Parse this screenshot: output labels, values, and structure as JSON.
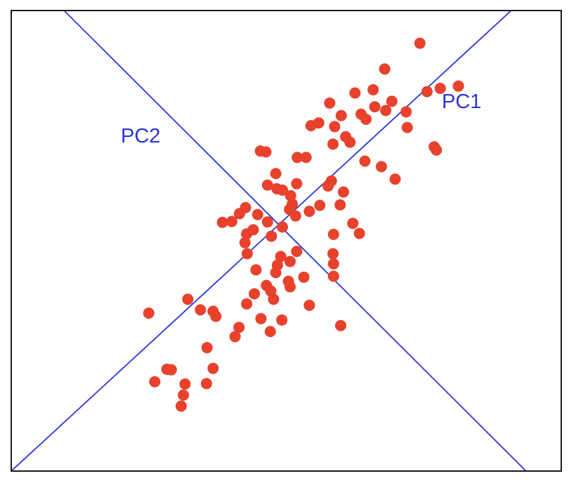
{
  "chart_data": {
    "type": "scatter",
    "title": "",
    "xlabel": "",
    "ylabel": "",
    "xlim": [
      0,
      100
    ],
    "ylim": [
      0,
      100
    ],
    "grid": false,
    "point_color": "#e8412c",
    "line_color": "#2b35d9",
    "axes": [
      {
        "label": "PC1",
        "from": [
          0,
          0
        ],
        "to": [
          90.9,
          100
        ]
      },
      {
        "label": "PC2",
        "from": [
          9.6,
          100
        ],
        "to": [
          93.6,
          0
        ]
      }
    ],
    "points": [
      [
        74.3,
        92.9
      ],
      [
        75.6,
        82.4
      ],
      [
        78.0,
        83.1
      ],
      [
        81.3,
        83.6
      ],
      [
        67.9,
        87.3
      ],
      [
        65.8,
        82.8
      ],
      [
        62.5,
        82.1
      ],
      [
        66.1,
        79.1
      ],
      [
        69.2,
        80.3
      ],
      [
        57.9,
        79.9
      ],
      [
        63.6,
        77.5
      ],
      [
        60.0,
        77.2
      ],
      [
        55.9,
        75.6
      ],
      [
        58.8,
        74.8
      ],
      [
        54.5,
        75.0
      ],
      [
        71.8,
        78.0
      ],
      [
        68.1,
        78.3
      ],
      [
        72.0,
        74.6
      ],
      [
        77.3,
        69.7
      ],
      [
        64.5,
        76.4
      ],
      [
        60.8,
        72.6
      ],
      [
        61.6,
        71.4
      ],
      [
        58.5,
        71.0
      ],
      [
        64.3,
        67.3
      ],
      [
        67.3,
        66.1
      ],
      [
        69.8,
        63.4
      ],
      [
        76.9,
        70.4
      ],
      [
        53.6,
        68.1
      ],
      [
        52.0,
        68.1
      ],
      [
        46.3,
        69.3
      ],
      [
        45.3,
        69.5
      ],
      [
        58.2,
        63.0
      ],
      [
        48.1,
        64.6
      ],
      [
        46.6,
        62.1
      ],
      [
        48.3,
        61.3
      ],
      [
        49.3,
        61.0
      ],
      [
        50.8,
        59.8
      ],
      [
        51.9,
        62.4
      ],
      [
        57.6,
        61.9
      ],
      [
        60.4,
        60.6
      ],
      [
        56.1,
        57.7
      ],
      [
        59.8,
        57.8
      ],
      [
        54.2,
        56.4
      ],
      [
        51.1,
        58.0
      ],
      [
        50.6,
        56.8
      ],
      [
        42.6,
        57.2
      ],
      [
        41.5,
        55.9
      ],
      [
        44.8,
        55.7
      ],
      [
        46.6,
        54.1
      ],
      [
        44.0,
        52.4
      ],
      [
        42.8,
        51.5
      ],
      [
        38.4,
        54.0
      ],
      [
        40.1,
        54.2
      ],
      [
        42.5,
        49.6
      ],
      [
        42.9,
        47.2
      ],
      [
        47.3,
        51.0
      ],
      [
        49.3,
        53.0
      ],
      [
        51.7,
        55.4
      ],
      [
        62.1,
        53.8
      ],
      [
        63.3,
        51.6
      ],
      [
        58.6,
        51.4
      ],
      [
        58.5,
        47.2
      ],
      [
        51.9,
        47.7
      ],
      [
        49.0,
        46.6
      ],
      [
        50.7,
        45.5
      ],
      [
        48.4,
        44.7
      ],
      [
        48.1,
        43.1
      ],
      [
        44.5,
        43.7
      ],
      [
        46.4,
        40.3
      ],
      [
        53.2,
        42.1
      ],
      [
        50.7,
        40.0
      ],
      [
        50.4,
        41.2
      ],
      [
        58.6,
        45.0
      ],
      [
        58.6,
        42.3
      ],
      [
        47.7,
        37.3
      ],
      [
        47.2,
        39.1
      ],
      [
        44.2,
        38.5
      ],
      [
        42.8,
        36.3
      ],
      [
        32.1,
        37.3
      ],
      [
        34.4,
        35.0
      ],
      [
        36.7,
        34.7
      ],
      [
        37.2,
        33.6
      ],
      [
        54.2,
        36.0
      ],
      [
        25.0,
        34.3
      ],
      [
        45.4,
        33.1
      ],
      [
        49.2,
        32.8
      ],
      [
        59.9,
        31.6
      ],
      [
        41.4,
        31.2
      ],
      [
        47.1,
        30.3
      ],
      [
        40.7,
        29.2
      ],
      [
        35.6,
        26.8
      ],
      [
        28.3,
        22.1
      ],
      [
        29.1,
        22.0
      ],
      [
        36.7,
        22.3
      ],
      [
        26.1,
        19.4
      ],
      [
        31.6,
        18.9
      ],
      [
        35.5,
        19.0
      ],
      [
        31.3,
        16.5
      ],
      [
        30.9,
        14.1
      ]
    ]
  }
}
